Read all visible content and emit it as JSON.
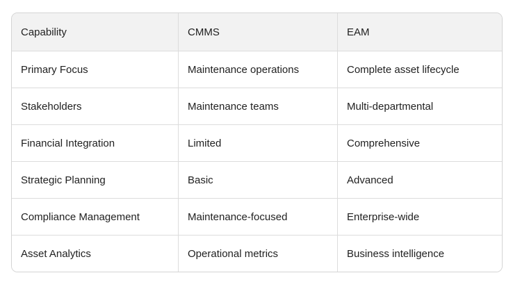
{
  "colors": {
    "page_background": "#ffffff",
    "header_background": "#f2f2f2",
    "row_background": "#ffffff",
    "border": "#d9d9d9",
    "text": "#212121"
  },
  "chart_data": {
    "type": "table",
    "title": "",
    "columns": [
      "Capability",
      "CMMS",
      "EAM"
    ],
    "rows": [
      [
        "Primary Focus",
        "Maintenance operations",
        "Complete asset lifecycle"
      ],
      [
        "Stakeholders",
        "Maintenance teams",
        "Multi-departmental"
      ],
      [
        "Financial Integration",
        "Limited",
        "Comprehensive"
      ],
      [
        "Strategic Planning",
        "Basic",
        "Advanced"
      ],
      [
        "Compliance Management",
        "Maintenance-focused",
        "Enterprise-wide"
      ],
      [
        "Asset Analytics",
        "Operational metrics",
        "Business intelligence"
      ]
    ]
  }
}
